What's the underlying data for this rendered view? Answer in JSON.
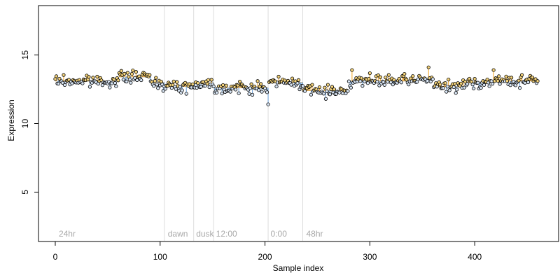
{
  "chart_data": {
    "type": "scatter",
    "title": "",
    "xlabel": "Sample index",
    "ylabel": "Expression",
    "xlim": [
      -16,
      480
    ],
    "ylim": [
      1.4,
      18.6
    ],
    "x_ticks": [
      0,
      100,
      200,
      300,
      400
    ],
    "y_ticks": [
      5,
      10,
      15
    ],
    "grid": false,
    "legend": "none",
    "segment_boundaries": [
      104,
      132,
      151,
      203,
      236
    ],
    "segment_labels": [
      {
        "text": "24hr",
        "x": 2
      },
      {
        "text": "dawn",
        "x": 106
      },
      {
        "text": "dusk",
        "x": 133
      },
      {
        "text": "12:00",
        "x": 152
      },
      {
        "text": "0:00",
        "x": 204
      },
      {
        "text": "48hr",
        "x": 238
      }
    ],
    "segment_mean_series": [
      {
        "start": 0,
        "end": 60,
        "value": 13.1
      },
      {
        "start": 61,
        "end": 91,
        "value": 13.4
      },
      {
        "start": 92,
        "end": 104,
        "value": 13.0
      },
      {
        "start": 105,
        "end": 132,
        "value": 12.7
      },
      {
        "start": 133,
        "end": 151,
        "value": 12.9
      },
      {
        "start": 152,
        "end": 203,
        "value": 12.6
      },
      {
        "start": 204,
        "end": 236,
        "value": 13.0
      },
      {
        "start": 237,
        "end": 279,
        "value": 12.4
      },
      {
        "start": 280,
        "end": 345,
        "value": 13.1
      },
      {
        "start": 346,
        "end": 360,
        "value": 13.3
      },
      {
        "start": 361,
        "end": 390,
        "value": 12.7
      },
      {
        "start": 391,
        "end": 415,
        "value": 13.0
      },
      {
        "start": 416,
        "end": 460,
        "value": 13.1
      }
    ],
    "colors": {
      "above_mean": "#f5a623",
      "below_mean": "#6a9fd8",
      "point_edge": "#000000",
      "segment_line": "#dcdcdc",
      "segment_text": "#a8a8a8"
    }
  }
}
